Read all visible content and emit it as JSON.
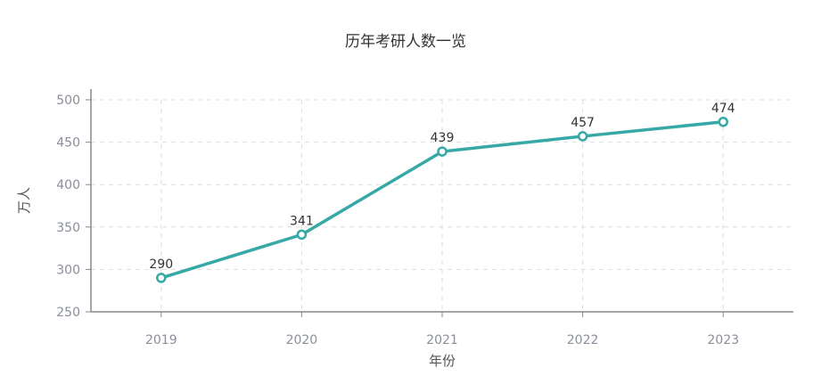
{
  "chart_data": {
    "type": "line",
    "title": "历年考研人数一览",
    "xlabel": "年份",
    "ylabel": "万人",
    "categories": [
      "2019",
      "2020",
      "2021",
      "2022",
      "2023"
    ],
    "series": [
      {
        "values": [
          290,
          341,
          439,
          457,
          474
        ]
      }
    ],
    "ylim": [
      250,
      500
    ],
    "yticks": [
      "250",
      "300",
      "350",
      "400",
      "450",
      "500"
    ],
    "grid": true,
    "data_labels": true,
    "colors": {
      "line": "#36a9a6",
      "point_fill": "#ffffff",
      "axis": "#888888",
      "grid": "#dddddd",
      "tick_text": "#8a8f99",
      "label_text": "#333333"
    }
  }
}
